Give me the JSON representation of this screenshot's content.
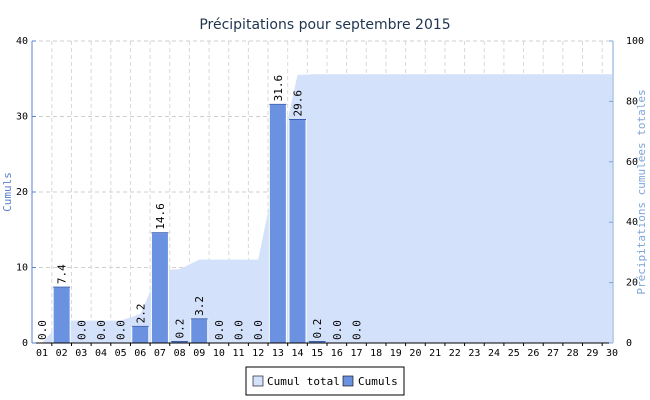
{
  "chart_data": {
    "type": "bar",
    "title": "Précipitations pour septembre 2015",
    "ylabel": "Cumuls",
    "y2label": "Précipitations cumulées totales",
    "ylim": [
      0,
      40
    ],
    "y2lim": [
      0,
      100
    ],
    "yticks": [
      0,
      10,
      20,
      30,
      40
    ],
    "y2ticks": [
      0,
      20,
      40,
      60,
      80,
      100
    ],
    "grid": true,
    "legend_position": "bottom-center",
    "colors": {
      "cumuls": "#6b92e0",
      "cumul_total": "#d4e1fa",
      "axis_left": "#5a82d0",
      "axis_right": "#7fa6d8"
    },
    "categories": [
      "01",
      "02",
      "03",
      "04",
      "05",
      "06",
      "07",
      "08",
      "09",
      "10",
      "11",
      "12",
      "13",
      "14",
      "15",
      "16",
      "17",
      "18",
      "19",
      "20",
      "21",
      "22",
      "23",
      "24",
      "25",
      "26",
      "27",
      "28",
      "29",
      "30"
    ],
    "series": [
      {
        "name": "Cumuls",
        "kind": "bar",
        "axis": "left",
        "values": [
          0.0,
          7.4,
          0.0,
          0.0,
          0.0,
          2.2,
          14.6,
          0.2,
          3.2,
          0.0,
          0.0,
          0.0,
          31.6,
          29.6,
          0.2,
          0.0,
          0.0,
          null,
          null,
          null,
          null,
          null,
          null,
          null,
          null,
          null,
          null,
          null,
          null,
          null
        ],
        "labels": [
          "0.0",
          "7.4",
          "0.0",
          "0.0",
          "0.0",
          "2.2",
          "14.6",
          "0.2",
          "3.2",
          "0.0",
          "0.0",
          "0.0",
          "31.6",
          "29.6",
          "0.2",
          "0.0",
          "0.0",
          "",
          "",
          "",
          "",
          "",
          "",
          "",
          "",
          "",
          "",
          "",
          "",
          ""
        ]
      },
      {
        "name": "Cumul total",
        "kind": "area",
        "axis": "right",
        "values": [
          0.0,
          7.4,
          7.4,
          7.4,
          7.4,
          9.6,
          24.2,
          24.4,
          27.6,
          27.6,
          27.6,
          27.6,
          59.2,
          88.8,
          89.0,
          89.0,
          89.0,
          89.0,
          89.0,
          89.0,
          89.0,
          89.0,
          89.0,
          89.0,
          89.0,
          89.0,
          89.0,
          89.0,
          89.0,
          89.0
        ]
      }
    ]
  }
}
